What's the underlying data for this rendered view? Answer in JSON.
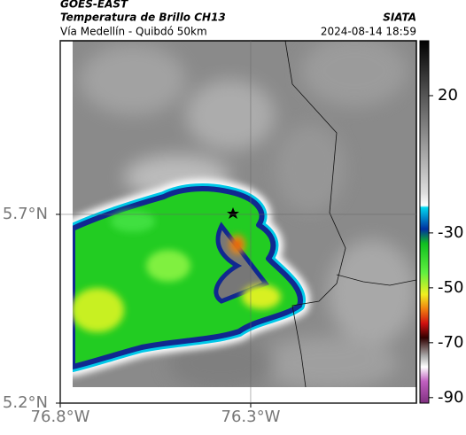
{
  "header": {
    "source": "GOES-EAST",
    "title": "Temperatura de Brillo CH13",
    "subtitle": "Vía Medellín - Quibdó 50km",
    "agency": "SIATA",
    "datetime": "2024-08-14 18:59"
  },
  "map": {
    "xlim": [
      -76.8,
      -75.865
    ],
    "ylim": [
      5.2,
      6.16
    ],
    "xticks": [
      {
        "value": -76.8,
        "label": "76.8°W"
      },
      {
        "value": -76.3,
        "label": "76.3°W"
      }
    ],
    "yticks": [
      {
        "value": 5.7,
        "label": "5.7°N"
      },
      {
        "value": 5.2,
        "label": "5.2°N"
      }
    ],
    "grid": true
  },
  "colorbar": {
    "lim": [
      -92,
      40
    ],
    "ticks": [
      20,
      -30,
      -50,
      -70,
      -90
    ]
  }
}
